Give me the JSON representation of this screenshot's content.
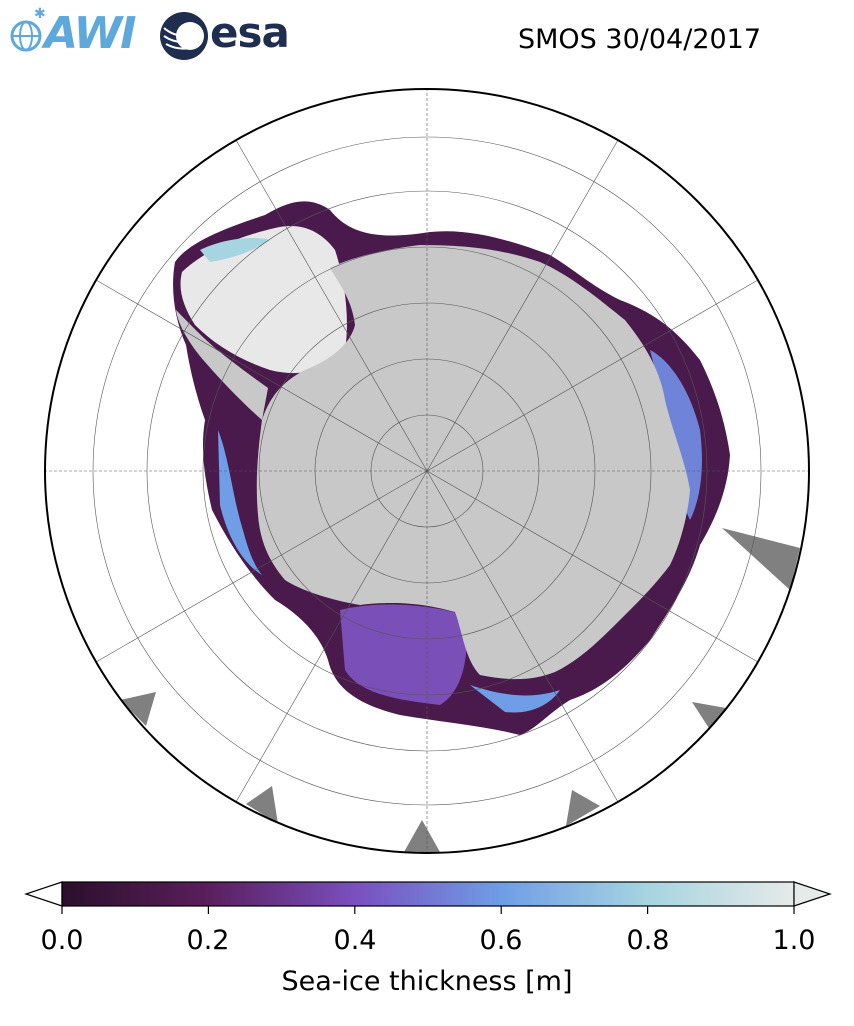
{
  "header": {
    "awi_logo_text": "AWI",
    "esa_logo_text": "esa",
    "title": "SMOS 30/04/2017"
  },
  "map": {
    "projection": "south-polar-stereographic",
    "colors": {
      "land": "#c8c8c8",
      "no_data": "#808080",
      "ice_thick": "#e8e8e8",
      "ice_thin": "#3a0f3a",
      "gridline": "#555555"
    }
  },
  "colorbar": {
    "label": "Sea-ice thickness [m]",
    "ticks": [
      "0.0",
      "0.2",
      "0.4",
      "0.6",
      "0.8",
      "1.0"
    ],
    "range": [
      0.0,
      1.0
    ],
    "extend": "both",
    "colors": [
      "#2b0f2b",
      "#5a1f5c",
      "#7a4fbf",
      "#6f9de6",
      "#a6d4e0",
      "#e6eae9"
    ]
  }
}
